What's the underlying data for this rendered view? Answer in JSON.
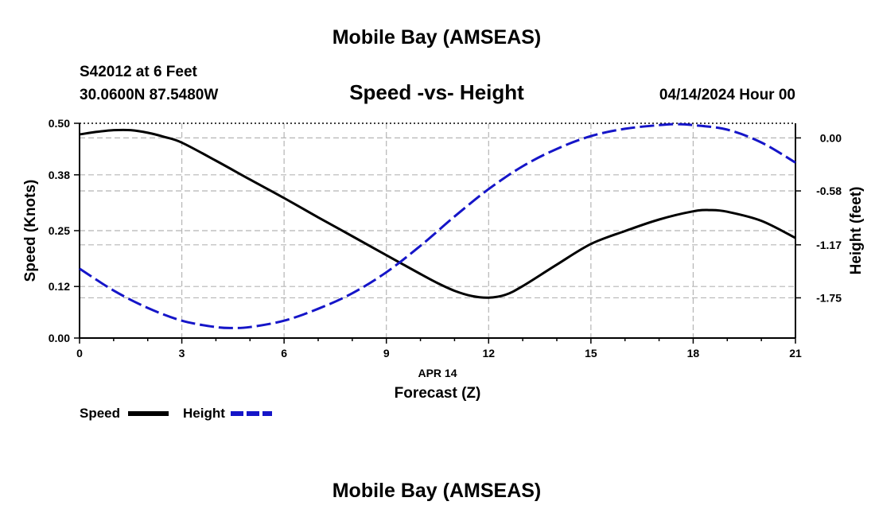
{
  "chart_data": {
    "type": "line",
    "title": "Mobile Bay (AMSEAS)",
    "subtitle": "Speed -vs- Height",
    "station": "S42012 at 6 Feet",
    "location": "30.0600N  87.5480W",
    "datetime": "04/14/2024 Hour 00",
    "date_label": "APR 14",
    "xlabel": "Forecast (Z)",
    "ylabel_left": "Speed (Knots)",
    "ylabel_right": "Height (feet)",
    "x_ticks": [
      "0",
      "3",
      "6",
      "9",
      "12",
      "15",
      "18",
      "21"
    ],
    "xlim": [
      0,
      21
    ],
    "y_left_ticks": [
      "0.00",
      "0.12",
      "0.25",
      "0.38",
      "0.50"
    ],
    "ylim_left": [
      0,
      0.5
    ],
    "y_right_ticks": [
      "0.00",
      "-0.58",
      "-1.17",
      "-1.75"
    ],
    "y_right_tick_values": [
      0,
      -0.58,
      -1.17,
      -1.75
    ],
    "ylim_right": [
      -2.19,
      0.16
    ],
    "grid": true,
    "series": [
      {
        "name": "Speed",
        "axis": "left",
        "color": "#000000",
        "style": "solid",
        "x": [
          0,
          0.5,
          1,
          1.5,
          2,
          2.5,
          3,
          4,
          5,
          6,
          7,
          8,
          9,
          10,
          10.5,
          11,
          11.5,
          12,
          12.5,
          13,
          14,
          15,
          16,
          17,
          18,
          18.5,
          19,
          20,
          21
        ],
        "values": [
          0.474,
          0.48,
          0.484,
          0.484,
          0.478,
          0.468,
          0.455,
          0.413,
          0.369,
          0.326,
          0.281,
          0.237,
          0.193,
          0.149,
          0.128,
          0.11,
          0.098,
          0.094,
          0.101,
          0.121,
          0.171,
          0.219,
          0.249,
          0.276,
          0.295,
          0.298,
          0.294,
          0.273,
          0.233
        ]
      },
      {
        "name": "Height",
        "axis": "right",
        "color": "#1515c8",
        "style": "dashed",
        "x": [
          0,
          1,
          2,
          3,
          4,
          4.5,
          5,
          6,
          7,
          8,
          9,
          10,
          11,
          12,
          13,
          14,
          15,
          16,
          17,
          17.5,
          18,
          19,
          20,
          21
        ],
        "values": [
          -1.43,
          -1.67,
          -1.86,
          -2.0,
          -2.07,
          -2.08,
          -2.07,
          -2.0,
          -1.87,
          -1.7,
          -1.47,
          -1.18,
          -0.86,
          -0.56,
          -0.31,
          -0.12,
          0.02,
          0.1,
          0.14,
          0.15,
          0.14,
          0.09,
          -0.05,
          -0.27
        ]
      }
    ],
    "legend": [
      {
        "label": "Speed",
        "color": "#000000",
        "style": "solid"
      },
      {
        "label": "Height",
        "color": "#1515c8",
        "style": "dashed"
      }
    ],
    "footer_title": "Mobile Bay (AMSEAS)"
  }
}
